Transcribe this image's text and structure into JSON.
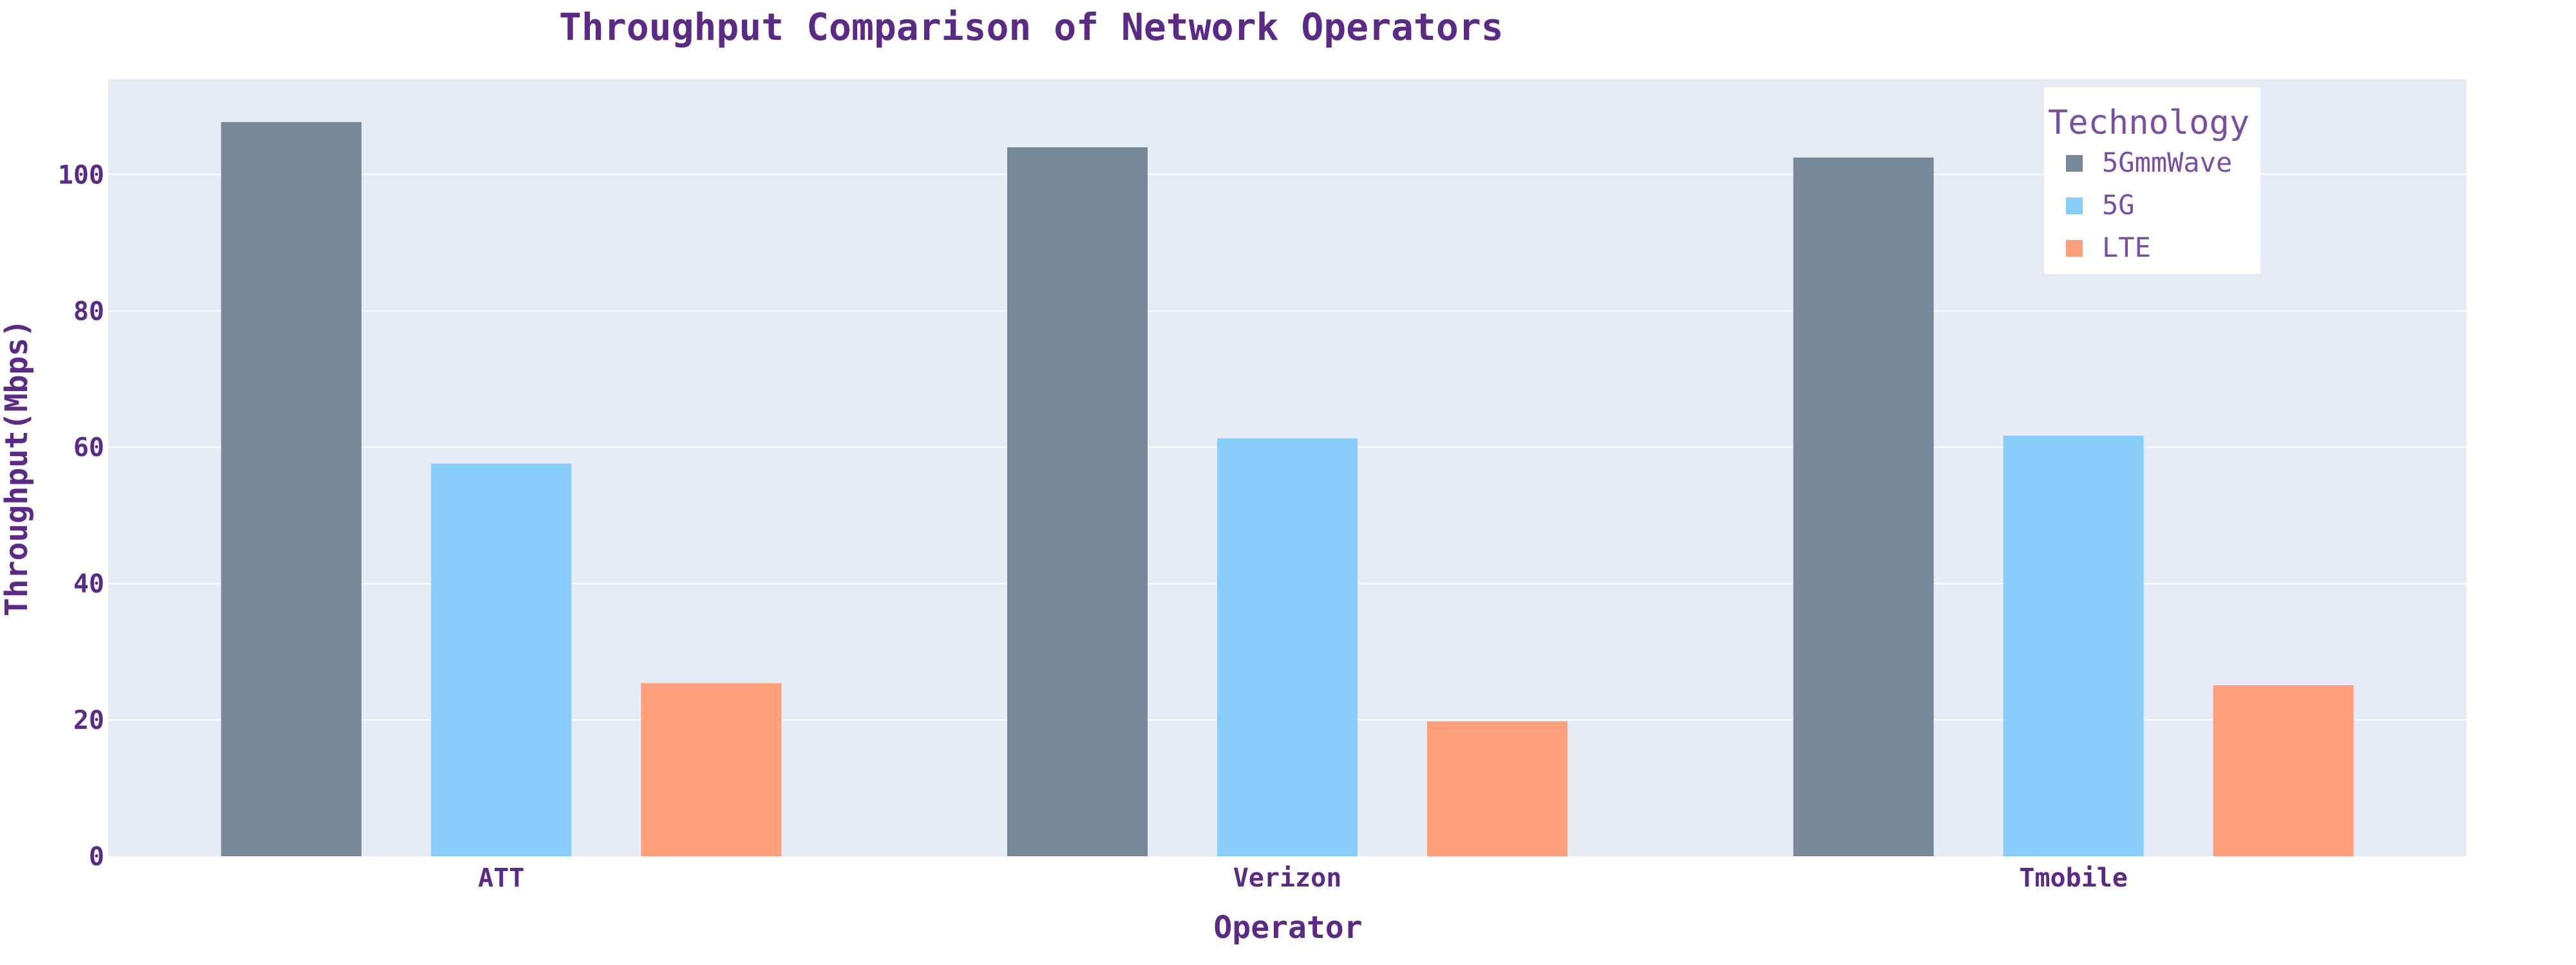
{
  "chart_data": {
    "type": "bar",
    "title": "Throughput Comparison of Network Operators",
    "xlabel": "Operator",
    "ylabel": "Throughput(Mbps)",
    "categories": [
      "ATT",
      "Verizon",
      "Tmobile"
    ],
    "series": [
      {
        "name": "5GmmWave",
        "values": [
          107.7,
          104.0,
          102.5
        ],
        "color": "#778899"
      },
      {
        "name": "5G",
        "values": [
          57.6,
          61.3,
          61.7
        ],
        "color": "#87CEFA"
      },
      {
        "name": "LTE",
        "values": [
          25.4,
          19.8,
          25.1
        ],
        "color": "#FFA07A"
      }
    ],
    "ylim": [
      0,
      114
    ],
    "yticks": [
      0,
      20,
      40,
      60,
      80,
      100
    ],
    "grid": true,
    "legend": {
      "title": "Technology",
      "placement": "top-right"
    },
    "colors": {
      "text": "#5b2a86",
      "plot_background": "#e5ecf6",
      "grid": "#ffffff",
      "legend_background": "#ffffff"
    }
  }
}
